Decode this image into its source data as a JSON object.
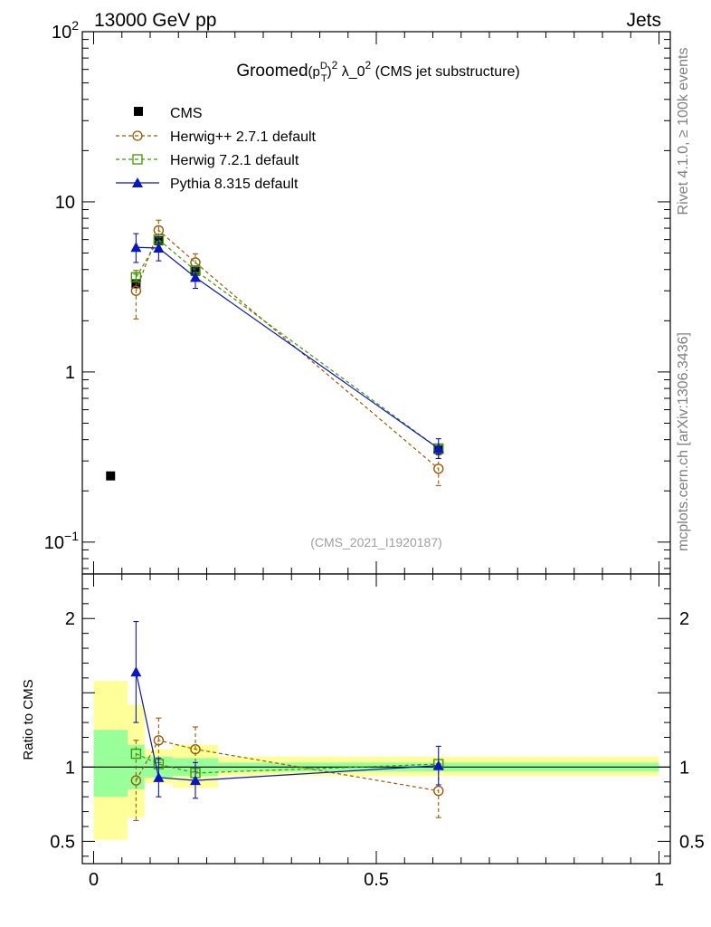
{
  "header": {
    "left": "13000 GeV pp",
    "right": "Jets"
  },
  "side_labels": {
    "rivet": "Rivet 4.1.0, ≥ 100k events",
    "mcplots": "mcplots.cern.ch [arXiv:1306.3436]"
  },
  "chart_data": {
    "type": "line",
    "title": {
      "prefix": "Groomed",
      "open": "(p",
      "sup": "D",
      "sub": "T",
      "close": ")",
      "exp": "2",
      "mid": " λ_0",
      "exp2": "2",
      "suffix": " (CMS jet substructure)"
    },
    "analysis_id": "(CMS_2021_I1920187)",
    "main": {
      "yscale": "log",
      "ylim": [
        0.065,
        100
      ],
      "xlim": [
        -0.02,
        1.02
      ],
      "y_tick_labels": [
        {
          "value": 100,
          "base": "10",
          "exp": "2"
        },
        {
          "value": 10,
          "base": "10",
          "exp": ""
        },
        {
          "value": 1,
          "base": "1",
          "exp": ""
        },
        {
          "value": 0.1,
          "base": "10",
          "exp": "−1"
        }
      ]
    },
    "ratio": {
      "ylabel": "Ratio to CMS",
      "ylim": [
        0.35,
        2.3
      ],
      "y_tick_labels": [
        "2",
        "1",
        "0.5"
      ],
      "y_tick_values": [
        2,
        1,
        0.5
      ]
    },
    "x_tick_labels": [
      "0",
      "0.5",
      "1"
    ],
    "x_tick_values": [
      0,
      0.5,
      1
    ],
    "legend_position": "top-left",
    "series": [
      {
        "name": "CMS",
        "kind": "data",
        "color": "#000000",
        "marker": "square-filled",
        "x": [
          0.03,
          0.075,
          0.115,
          0.18,
          0.61
        ],
        "y": [
          0.245,
          3.3,
          5.9,
          3.9,
          0.35
        ],
        "yerr": [
          0,
          0.15,
          0.2,
          0.15,
          0.02
        ]
      },
      {
        "name": "Herwig++ 2.7.1 default",
        "kind": "mc",
        "color": "#9c5a00",
        "marker": "circle-open",
        "dash": "4,3",
        "x": [
          0.075,
          0.115,
          0.18,
          0.61
        ],
        "y": [
          3.0,
          6.8,
          4.4,
          0.27
        ],
        "err_lo": [
          2.05,
          5.8,
          3.85,
          0.215
        ],
        "err_hi": [
          3.95,
          7.8,
          4.95,
          0.325
        ],
        "ratio": [
          0.91,
          1.18,
          1.12,
          0.84
        ],
        "ratio_lo": [
          0.64,
          1.03,
          0.97,
          0.66
        ],
        "ratio_hi": [
          1.18,
          1.33,
          1.27,
          1.02
        ]
      },
      {
        "name": "Herwig 7.2.1 default",
        "kind": "mc",
        "color": "#3a9c00",
        "marker": "square-open",
        "dash": "4,3",
        "x": [
          0.075,
          0.115,
          0.18,
          0.61
        ],
        "y": [
          3.6,
          6.0,
          3.95,
          0.355
        ],
        "err_lo": [
          3.45,
          5.85,
          3.8,
          0.34
        ],
        "err_hi": [
          3.75,
          6.15,
          4.1,
          0.37
        ],
        "ratio": [
          1.09,
          1.02,
          0.96,
          1.02
        ],
        "ratio_lo": [
          1.09,
          1.02,
          0.96,
          1.02
        ],
        "ratio_hi": [
          1.09,
          1.02,
          0.96,
          1.02
        ]
      },
      {
        "name": "Pythia 8.315 default",
        "kind": "mc",
        "color": "#0a14c8",
        "marker": "triangle-filled",
        "x": [
          0.075,
          0.115,
          0.18,
          0.61
        ],
        "y": [
          5.4,
          5.35,
          3.6,
          0.355
        ],
        "err_lo": [
          4.4,
          4.5,
          3.1,
          0.31
        ],
        "err_hi": [
          6.5,
          6.2,
          4.1,
          0.405
        ],
        "ratio": [
          1.64,
          0.93,
          0.91,
          1.01
        ],
        "ratio_lo": [
          1.3,
          0.8,
          0.79,
          0.88
        ],
        "ratio_hi": [
          1.98,
          1.06,
          1.03,
          1.14
        ]
      }
    ],
    "uncertainty_bands": [
      {
        "x0": 0.0,
        "x1": 0.06,
        "y_lo": 0.51,
        "y_hi": 1.58,
        "g_lo": 0.8,
        "g_hi": 1.25
      },
      {
        "x0": 0.06,
        "x1": 0.09,
        "y_lo": 0.66,
        "y_hi": 1.42,
        "g_lo": 0.85,
        "g_hi": 1.15
      },
      {
        "x0": 0.09,
        "x1": 0.14,
        "y_lo": 0.89,
        "y_hi": 1.12,
        "g_lo": 0.93,
        "g_hi": 1.07
      },
      {
        "x0": 0.14,
        "x1": 0.22,
        "y_lo": 0.86,
        "y_hi": 1.15,
        "g_lo": 0.94,
        "g_hi": 1.06
      },
      {
        "x0": 0.22,
        "x1": 1.0,
        "y_lo": 0.94,
        "y_hi": 1.07,
        "g_lo": 0.97,
        "g_hi": 1.03
      }
    ],
    "band_colors": {
      "outer": "#ffff99",
      "inner": "#99ff99"
    }
  }
}
